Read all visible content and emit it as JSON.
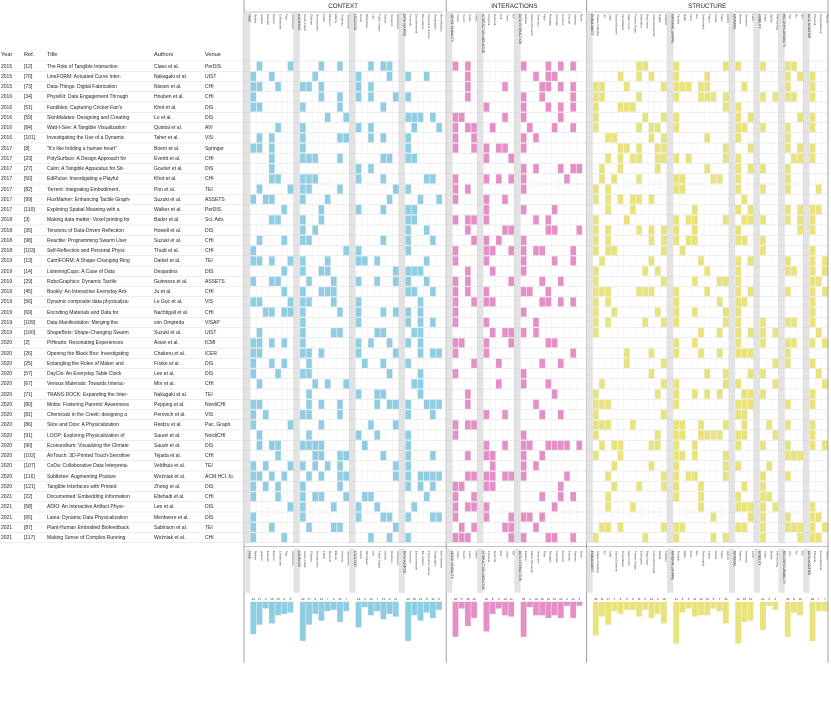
{
  "sections": [
    {
      "title": "CONTEXT",
      "color": "#8fcde3",
      "groups": [
        {
          "name": "TASK",
          "items": [
            "Reflect",
            "analyze",
            "Educate",
            "Explore",
            "Collaborate",
            "Play",
            "Uncovered"
          ]
        },
        {
          "name": "AUDIENCE",
          "items": [
            "Home Public",
            "Children",
            "Researchers",
            "Public",
            "Museum",
            "Elderly",
            "Students",
            "Uncovered"
          ]
        },
        {
          "name": "LOCATION",
          "items": [
            "Home",
            "Workplace",
            "Lab",
            "Public Space",
            "School",
            "Outdoors",
            "Uncovered"
          ]
        },
        {
          "name": "DATA SOURCE",
          "items": [
            "Personal",
            "Environmental",
            "Bio-related",
            "Physical & Human",
            "Geographic",
            "Non-Abstract"
          ]
        }
      ]
    },
    {
      "title": "INTERACTIONS",
      "color": "#e58fc7",
      "groups": [
        {
          "name": "SENSE MODALITY",
          "items": [
            "Vision",
            "Touch",
            "Audio",
            "Smell"
          ]
        },
        {
          "name": "INTERACTION MEDIATOR",
          "items": [
            "Physical",
            "Gestural",
            "GUI",
            "Voice",
            "N/A"
          ]
        },
        {
          "name": "DATA INTERACTION",
          "items": [
            "Explore",
            "Select (focused)",
            "Overview",
            "Filter",
            "Navigate",
            "Annotate",
            "Connect",
            "Encode",
            "Abstract",
            "None"
          ]
        }
      ]
    },
    {
      "title": "STRUCTURE",
      "color": "#e8e37c",
      "groups": [
        {
          "name": "EMBODIMENT",
          "items": [
            "Shape-changing",
            "4D",
            "Light",
            "Sound Element",
            "Fluid Motion",
            "Static Form",
            "Printed Shape",
            "Embodied",
            "Body Input",
            "Anthropomorphic",
            "Digital",
            "Ambient"
          ]
        },
        {
          "name": "MATERIAL (SHAPE)",
          "items": [
            "Flexible",
            "Rigid",
            "Fluid",
            "Gel",
            "Deformable",
            "Fabric",
            "Textile",
            "Paper",
            "Hybrid"
          ]
        },
        {
          "name": "MATERIAL",
          "items": [
            "Natural",
            "Synthetic",
            "Food"
          ]
        },
        {
          "name": "MOBILITY",
          "items": [
            "Static",
            "Mobile",
            "Self-moving"
          ]
        },
        {
          "name": "RECONFIGURABILITY",
          "items": [
            "Yes",
            "No",
            "N/A"
          ]
        },
        {
          "name": "DATA MODIFIER",
          "items": [
            "Physical",
            "Computational",
            "Hybrid"
          ]
        }
      ]
    }
  ],
  "table_headers": {
    "year": "Year",
    "ref": "Ref.",
    "title": "Title",
    "authors": "Authors",
    "venue": "Venue"
  },
  "rows": [
    {
      "year": "2015",
      "ref": "[12]",
      "title": "The Role of Tangible Interaction",
      "authors": "Claes et al.",
      "venue": "PerDIS"
    },
    {
      "year": "2015",
      "ref": "[70]",
      "title": "LineFORM: Actuated Curve Inter-",
      "authors": "Nakagaki et al.",
      "venue": "UIST"
    },
    {
      "year": "2015",
      "ref": "[73]",
      "title": "Data-Things: Digital Fabrication",
      "authors": "Nissen et al.",
      "venue": "CHI"
    },
    {
      "year": "2016",
      "ref": "[34]",
      "title": "PhysiKit: Data Engagement Through",
      "authors": "Houben et al.",
      "venue": "CHI"
    },
    {
      "year": "2016",
      "ref": "[51]",
      "title": "Fantibles: Capturing Cricket Fan's",
      "authors": "Khot et al.",
      "venue": "DIS"
    },
    {
      "year": "2016",
      "ref": "[59]",
      "title": "SkinMalates: Designing and Creating",
      "authors": "Lo et al.",
      "venue": "DIS"
    },
    {
      "year": "2016",
      "ref": "[84]",
      "title": "Watt-I-See: A Tangible Visualization",
      "authors": "Quintal et al.",
      "venue": "AVI"
    },
    {
      "year": "2016",
      "ref": "[101]",
      "title": "Investigating the Use of a Dynamic",
      "authors": "Taher et al.",
      "venue": "VIS"
    },
    {
      "year": "2017",
      "ref": "[8]",
      "title": "\"It's like holding a human heart\"",
      "authors": "Boem et al.",
      "venue": "Springer"
    },
    {
      "year": "2017",
      "ref": "[23]",
      "title": "PolySurface: A Design Approach for",
      "authors": "Everitt et al.",
      "venue": "CHI"
    },
    {
      "year": "2017",
      "ref": "[27]",
      "title": "Calm: A Tangible Apparatus for Sit-",
      "authors": "Gourlet et al.",
      "venue": "DIS"
    },
    {
      "year": "2017",
      "ref": "[50]",
      "title": "EdiPulse: Investigating a Playful",
      "authors": "Khot et al.",
      "venue": "CHI"
    },
    {
      "year": "2017",
      "ref": "[82]",
      "title": "Torrent: Integrating Embodiment,",
      "authors": "Pon et al.",
      "venue": "TEI"
    },
    {
      "year": "2017",
      "ref": "[99]",
      "title": "FluxMarker: Enhancing Tactile Graph-",
      "authors": "Suzuki et al.",
      "venue": "ASSETS"
    },
    {
      "year": "2017",
      "ref": "[110]",
      "title": "Exploring Spatial Meaning with a",
      "authors": "Walker et al.",
      "venue": "PerDIS"
    },
    {
      "year": "2018",
      "ref": "[3]",
      "title": "Making data matter: Voxel printing for",
      "authors": "Bader et al.",
      "venue": "Sci. Adv."
    },
    {
      "year": "2018",
      "ref": "[35]",
      "title": "Tensions of Data-Driven Reflection",
      "authors": "Howell et al.",
      "venue": "DIS"
    },
    {
      "year": "2018",
      "ref": "[98]",
      "title": "Reactile: Programming Swarm User",
      "authors": "Suzuki et al.",
      "venue": "CHI"
    },
    {
      "year": "2018",
      "ref": "[103]",
      "title": "Self-Reflection and Personal Physi-",
      "authors": "Thudt et al.",
      "venue": "CHI"
    },
    {
      "year": "2019",
      "ref": "[13]",
      "title": "CairnFORM: A Shape-Changing Ring",
      "authors": "Daniel et al.",
      "venue": "TEI"
    },
    {
      "year": "2019",
      "ref": "[14]",
      "title": "ListeningCups: A Case of Data",
      "authors": "Desjardins",
      "venue": "DIS"
    },
    {
      "year": "2019",
      "ref": "[29]",
      "title": "RoboGraphics: Dynamic Tactile",
      "authors": "Guinness et al.",
      "venue": "ASSETS"
    },
    {
      "year": "2019",
      "ref": "[45]",
      "title": "Bookly: An Interactive Everyday Arti-",
      "authors": "Ju et al.",
      "venue": "CHI"
    },
    {
      "year": "2019",
      "ref": "[56]",
      "title": "Dynamic composite data physicaliza-",
      "authors": "Le Goc et al.",
      "venue": "VIS"
    },
    {
      "year": "2019",
      "ref": "[69]",
      "title": "Encoding Materials and Data for",
      "authors": "Nachtigall et al.",
      "venue": "CHI"
    },
    {
      "year": "2019",
      "ref": "[109]",
      "title": "Data Manifestation: Merging the",
      "authors": "von Ompteda",
      "venue": "VISAP"
    },
    {
      "year": "2019",
      "ref": "[100]",
      "title": "ShapeBots: Shape-Changing Swarm",
      "authors": "Suzuki et al.",
      "venue": "UIST"
    },
    {
      "year": "2020",
      "ref": "[2]",
      "title": "PiHearts: Resonating Experiences",
      "authors": "Asian et al.",
      "venue": "ICMI"
    },
    {
      "year": "2020",
      "ref": "[26]",
      "title": "Opening the Black Box: Investigating",
      "authors": "Chakeru et al.",
      "venue": "ICER"
    },
    {
      "year": "2020",
      "ref": "[25]",
      "title": "Entangling the Roles of Maker and",
      "authors": "Friske et al.",
      "venue": "DIS"
    },
    {
      "year": "2020",
      "ref": "[57]",
      "title": "DayClo: An Everyday Table Clock",
      "authors": "Lee et al.",
      "venue": "DIS"
    },
    {
      "year": "2020",
      "ref": "[67]",
      "title": "Venous Materials: Towards Interac-",
      "authors": "Mor et al.",
      "venue": "CHI"
    },
    {
      "year": "2020",
      "ref": "[71]",
      "title": "TRANS-DOCK: Expanding the Inter-",
      "authors": "Nakagaki et al.",
      "venue": "TEI"
    },
    {
      "year": "2020",
      "ref": "[80]",
      "title": "Motiis: Fostering Parents' Awareness",
      "authors": "Pepping et al.",
      "venue": "NordiCHI"
    },
    {
      "year": "2020",
      "ref": "[81]",
      "title": "Chemicals in the Creek: designing a",
      "authors": "Perovich et al.",
      "venue": "VIS"
    },
    {
      "year": "2020",
      "ref": "[86]",
      "title": "Slice and Dice: A Physicalization",
      "authors": "Reidzu et al.",
      "venue": "Pac. Graph."
    },
    {
      "year": "2020",
      "ref": "[91]",
      "title": "LOOP: Exploring Physicalization of",
      "authors": "Sauvé et al.",
      "venue": "NordiCHI"
    },
    {
      "year": "2020",
      "ref": "[90]",
      "title": "Econundrum: Visualizing the Climate",
      "authors": "Sauvé et al.",
      "venue": "DIS"
    },
    {
      "year": "2020",
      "ref": "[102]",
      "title": "AirTouch: 3D-Printed Touch-Sensitive",
      "authors": "Tejada et al.",
      "venue": "CHI"
    },
    {
      "year": "2020",
      "ref": "[107]",
      "title": "CoDa: Collaborative Data Interpreta-",
      "authors": "Veldhuis et al.",
      "venue": "TEI"
    },
    {
      "year": "2020",
      "ref": "[116]",
      "title": "Subtletee: Augmenting Posture",
      "authors": "Woźniak et al.",
      "venue": "ACM HCI Jo."
    },
    {
      "year": "2020",
      "ref": "[121]",
      "title": "Tangible Interfaces with Printed",
      "authors": "Zheng et al.",
      "venue": "DIS"
    },
    {
      "year": "2021",
      "ref": "[22]",
      "title": "Documented: Embedding Information",
      "authors": "Ettehadi et al.",
      "venue": "CHI"
    },
    {
      "year": "2021",
      "ref": "[58]",
      "title": "ADIO: An Interactive Artifact Physi-",
      "authors": "Lee et al.",
      "venue": "DIS"
    },
    {
      "year": "2021",
      "ref": "[65]",
      "title": "Laina: Dynamic Data Physicalization",
      "authors": "Menheere et al.",
      "venue": "DIS"
    },
    {
      "year": "2021",
      "ref": "[87]",
      "title": "Plant-Human Embodied Biofeedback",
      "authors": "Sabinson et al.",
      "venue": "TEI"
    },
    {
      "year": "2021",
      "ref": "[117]",
      "title": "Making Sense of Complex Running",
      "authors": "Woźniak et al.",
      "venue": "CHI"
    }
  ],
  "marks_seed": 20210
}
